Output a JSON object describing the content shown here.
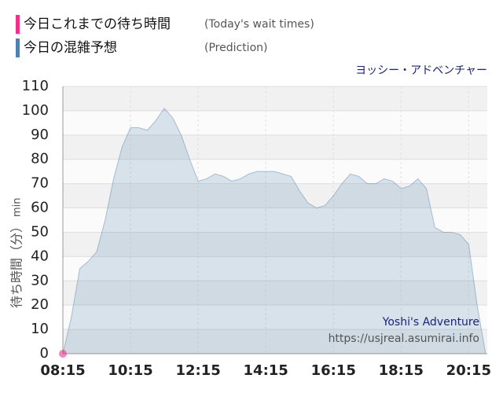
{
  "chart_data": {
    "type": "area",
    "title": "ヨッシー・アドベンチャー",
    "y_label": "待ち時間（分）",
    "y_unit": "min",
    "series": [
      {
        "name": "今日これまでの待ち時間",
        "note": "(Today's wait times)",
        "color": "#f0308c",
        "x": [
          "08:15"
        ],
        "values": [
          0
        ]
      },
      {
        "name": "今日の混雑予想",
        "note": "(Prediction)",
        "color": "#4f81b0",
        "x": [
          "08:15",
          "08:30",
          "08:45",
          "09:00",
          "09:15",
          "09:30",
          "09:45",
          "10:00",
          "10:15",
          "10:30",
          "10:45",
          "11:00",
          "11:15",
          "11:30",
          "11:45",
          "12:00",
          "12:15",
          "12:30",
          "12:45",
          "13:00",
          "13:15",
          "13:30",
          "13:45",
          "14:00",
          "14:15",
          "14:30",
          "14:45",
          "15:00",
          "15:15",
          "15:30",
          "15:45",
          "16:00",
          "16:15",
          "16:30",
          "16:45",
          "17:00",
          "17:15",
          "17:30",
          "17:45",
          "18:00",
          "18:15",
          "18:30",
          "18:45",
          "19:00",
          "19:15",
          "19:30",
          "19:45",
          "20:00",
          "20:15",
          "20:30",
          "20:45"
        ],
        "values": [
          0,
          15,
          35,
          38,
          42,
          55,
          72,
          85,
          93,
          93,
          92,
          96,
          101,
          97,
          90,
          80,
          71,
          72,
          74,
          73,
          71,
          72,
          74,
          75,
          75,
          75,
          74,
          73,
          67,
          62,
          60,
          61,
          65,
          70,
          74,
          73,
          70,
          70,
          72,
          71,
          68,
          69,
          72,
          68,
          52,
          50,
          50,
          49,
          45,
          20,
          0
        ]
      }
    ],
    "xlim": [
      "08:15",
      "20:48"
    ],
    "xticks": [
      "08:15",
      "10:15",
      "12:15",
      "14:15",
      "16:15",
      "18:15",
      "20:15"
    ],
    "ylim": [
      0,
      110
    ],
    "yticks": [
      0,
      10,
      20,
      30,
      40,
      50,
      60,
      70,
      80,
      90,
      100,
      110
    ],
    "grid": true,
    "watermark": [
      "Yoshi's Adventure",
      "https://usjreal.asumirai.info"
    ]
  }
}
